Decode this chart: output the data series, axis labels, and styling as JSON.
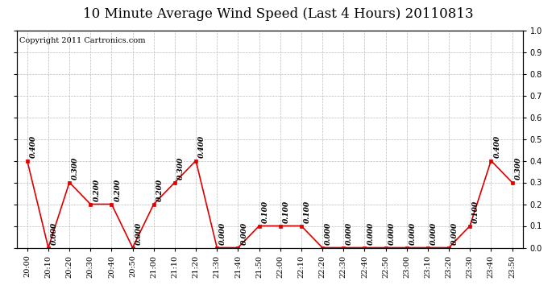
{
  "title": "10 Minute Average Wind Speed (Last 4 Hours) 20110813",
  "copyright": "Copyright 2011 Cartronics.com",
  "x_labels": [
    "20:00",
    "20:10",
    "20:20",
    "20:30",
    "20:40",
    "20:50",
    "21:00",
    "21:10",
    "21:20",
    "21:30",
    "21:40",
    "21:50",
    "22:00",
    "22:10",
    "22:20",
    "22:30",
    "22:40",
    "22:50",
    "23:00",
    "23:10",
    "23:20",
    "23:30",
    "23:40",
    "23:50"
  ],
  "y_values": [
    0.4,
    0.0,
    0.3,
    0.2,
    0.2,
    0.0,
    0.2,
    0.3,
    0.4,
    0.0,
    0.0,
    0.1,
    0.1,
    0.1,
    0.0,
    0.0,
    0.0,
    0.0,
    0.0,
    0.0,
    0.0,
    0.1,
    0.4,
    0.3
  ],
  "ylim": [
    0.0,
    1.0
  ],
  "yticks": [
    0.0,
    0.1,
    0.2,
    0.3,
    0.4,
    0.5,
    0.6,
    0.7,
    0.8,
    0.9,
    1.0
  ],
  "line_color": "#dd0000",
  "marker_color": "#dd0000",
  "grid_color": "#bbbbbb",
  "bg_color": "#ffffff",
  "annotation_color": "#000000",
  "title_fontsize": 12,
  "copyright_fontsize": 7,
  "annotation_fontsize": 6.5,
  "tick_fontsize": 7
}
